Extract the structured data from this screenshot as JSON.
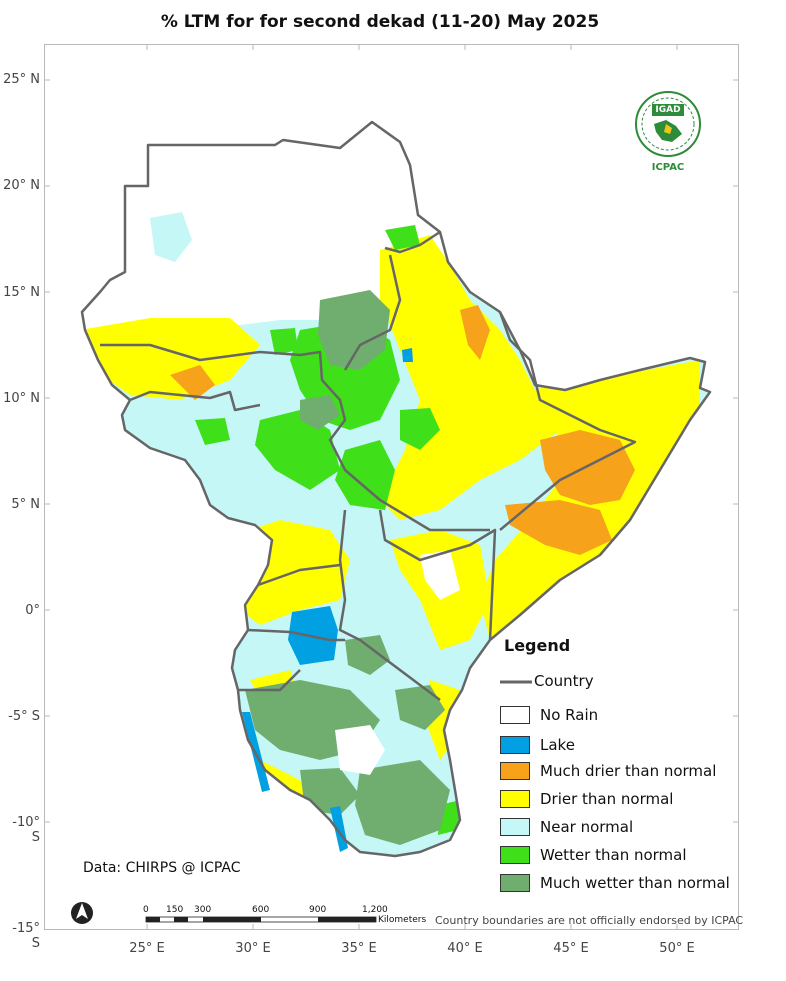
{
  "title": "% LTM  for   for   second dekad (11-20)  May 2025",
  "map": {
    "lat_labels": [
      "25° N",
      "20° N",
      "15° N",
      "10° N",
      "5° N",
      "0°",
      "-5° S",
      "-10° S",
      "-15° S"
    ],
    "lon_labels": [
      "25° E",
      "30° E",
      "35° E",
      "40° E",
      "45° E",
      "50° E"
    ]
  },
  "legend": {
    "title": "Legend",
    "country_label": "Country",
    "items": [
      {
        "label": "No Rain",
        "color": "#ffffff"
      },
      {
        "label": "Lake",
        "color": "#00a0e3"
      },
      {
        "label": "Much drier than normal",
        "color": "#f7a21b"
      },
      {
        "label": "Drier than normal",
        "color": "#ffff00"
      },
      {
        "label": "Near normal",
        "color": "#c6f7f7"
      },
      {
        "label": "Wetter than normal",
        "color": "#3fe01a"
      },
      {
        "label": "Much wetter than normal",
        "color": "#6fae6f"
      }
    ]
  },
  "data_source": "Data: CHIRPS @ ICPAC",
  "disclaimer": "Country boundaries are not officially endorsed by ICPAC",
  "scalebar": {
    "ticks": [
      "0",
      "150",
      "300",
      "600",
      "900",
      "1,200"
    ],
    "unit": "Kilometers"
  },
  "logo": {
    "top_text": "IGAD",
    "bottom_text": "ICPAC"
  },
  "north_arrow_icon": "north-arrow-icon"
}
